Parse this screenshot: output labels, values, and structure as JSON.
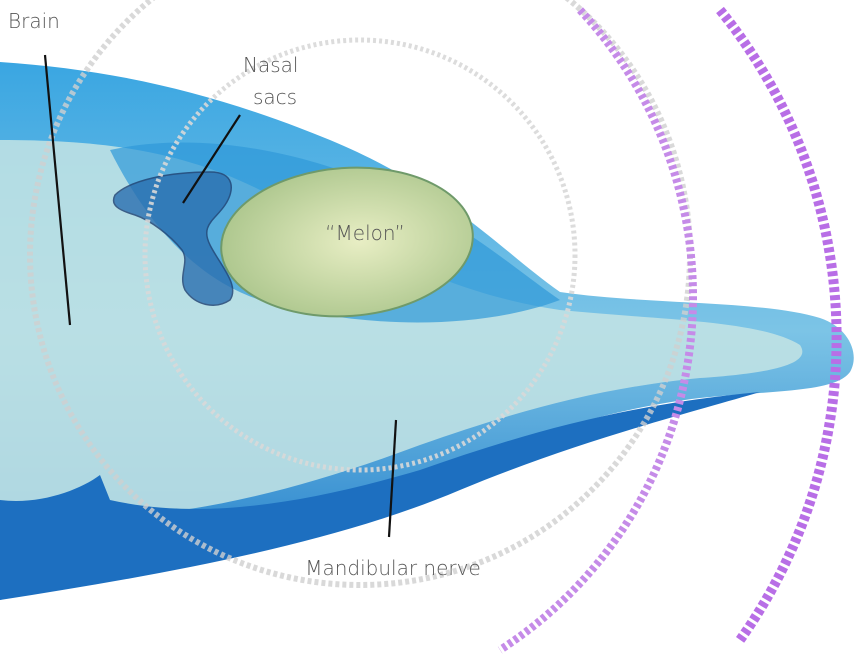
{
  "labels": {
    "brain": "Brain",
    "nasal_sacs": [
      "Nasal",
      "sacs"
    ],
    "melon": "“Melon”",
    "mandibular_nerve": "Mandibular nerve"
  }
}
